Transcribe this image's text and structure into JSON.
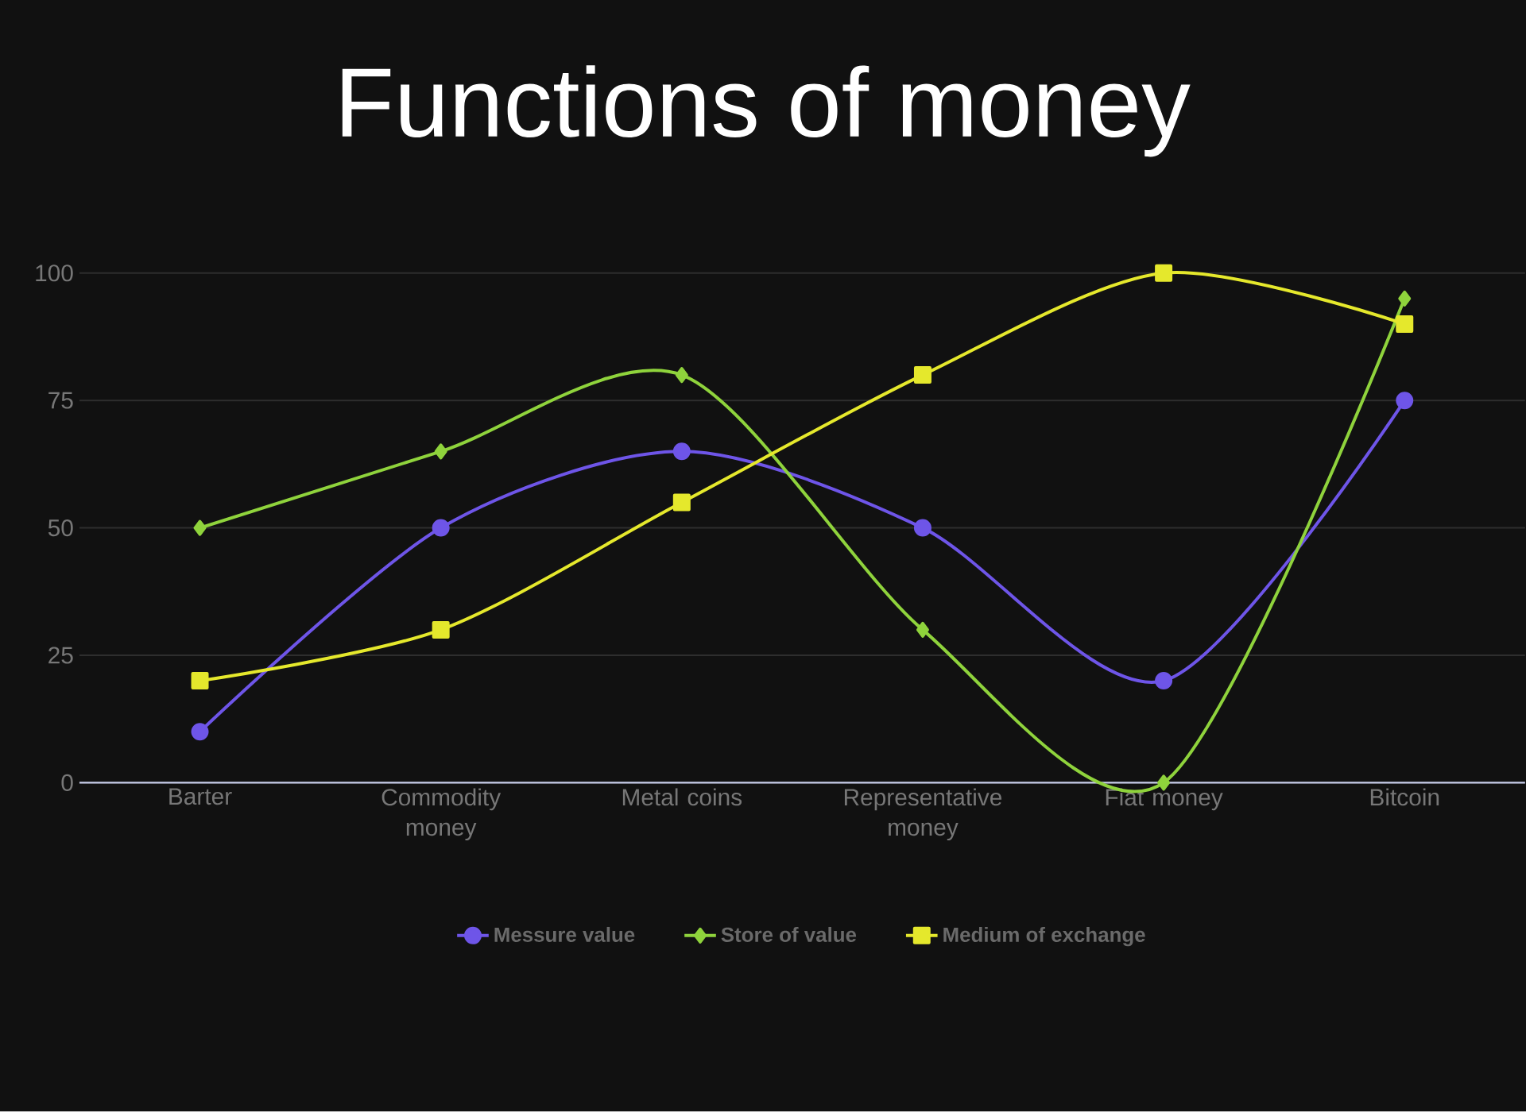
{
  "chart_data": {
    "type": "line",
    "title": "Functions of money",
    "categories": [
      "Barter",
      "Commodity money",
      "Metal coins",
      "Representative money",
      "Fiat money",
      "Bitcoin"
    ],
    "series": [
      {
        "name": "Messure value",
        "color": "#6e55e8",
        "marker": "circle",
        "values": [
          10,
          50,
          65,
          50,
          20,
          75
        ]
      },
      {
        "name": "Store of value",
        "color": "#8fd33c",
        "marker": "diamond",
        "values": [
          50,
          65,
          80,
          30,
          0,
          95
        ]
      },
      {
        "name": "Medium of exchange",
        "color": "#e5e82c",
        "marker": "square",
        "values": [
          20,
          30,
          55,
          80,
          100,
          90
        ]
      }
    ],
    "ylim": [
      0,
      100
    ],
    "yticks": [
      0,
      25,
      50,
      75,
      100
    ],
    "grid": "y",
    "legend": "bottom",
    "line_style": "solid"
  }
}
